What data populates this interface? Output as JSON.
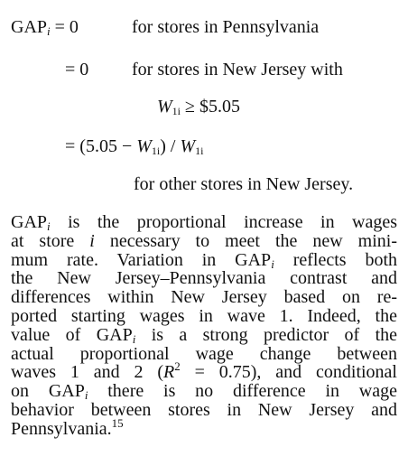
{
  "equation": {
    "gap_symbol": "GAP",
    "sub_i": "i",
    "eq_zero": "= 0",
    "cond_pa": "for stores in Pennsylvania",
    "cond_nj_with": "for stores in New Jersey with",
    "w_symbol": "W",
    "w_sub": "1i",
    "cond_geq": "≥ $5.05",
    "formula_lead": "= (5.05 − ",
    "formula_mid": ") / ",
    "cond_other": "for other stores in New Jersey."
  },
  "paragraph": {
    "gap": "GAP",
    "i": "i",
    "l1_a": " is the proportional increase in wages",
    "l2_a": "at store ",
    "l2_b": " necessary to meet the new mini-",
    "l3_a": "mum rate. Variation in ",
    "l3_b": " reflects both",
    "l4": "the New Jersey–Pennsylvania contrast and",
    "l5": "differences within New Jersey based on re-",
    "l6": "ported starting wages in wave 1. Indeed, the",
    "l7_a": "value of ",
    "l7_b": " is a strong predictor of the",
    "l8": "actual proportional wage change between",
    "l9_a": "waves 1 and 2 (",
    "l9_r": "R",
    "l9_sq": "2",
    "l9_b": " = 0.75), and conditional",
    "l10_a": "on ",
    "l10_b": " there is no difference in wage",
    "l11": "behavior between stores in New Jersey and",
    "l12": "Pennsylvania.",
    "footnote": "15"
  }
}
